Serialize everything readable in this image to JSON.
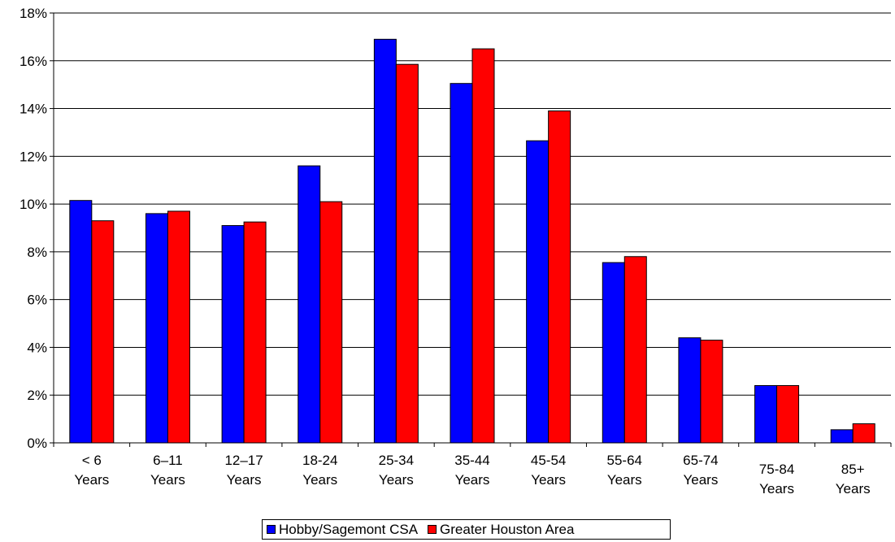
{
  "chart_data": {
    "type": "bar",
    "categories": [
      [
        "< 6",
        "Years"
      ],
      [
        "6–11",
        "Years"
      ],
      [
        "12–17",
        "Years"
      ],
      [
        "18-24",
        "Years"
      ],
      [
        "25-34",
        "Years"
      ],
      [
        "35-44",
        "Years"
      ],
      [
        "45-54",
        "Years"
      ],
      [
        "55-64",
        "Years"
      ],
      [
        "65-74",
        "Years"
      ],
      [
        "75-84",
        "Years"
      ],
      [
        "85+",
        "Years"
      ]
    ],
    "series": [
      {
        "name": "Hobby/Sagemont CSA",
        "color": "#0000ff",
        "values": [
          10.15,
          9.6,
          9.1,
          11.6,
          16.9,
          15.05,
          12.65,
          7.55,
          4.4,
          2.4,
          0.55
        ]
      },
      {
        "name": "Greater Houston Area",
        "color": "#ff0000",
        "values": [
          9.3,
          9.7,
          9.25,
          10.1,
          15.85,
          16.5,
          13.9,
          7.8,
          4.3,
          2.4,
          0.8
        ]
      }
    ],
    "ylim": [
      0,
      18
    ],
    "yticks": [
      "0%",
      "2%",
      "4%",
      "6%",
      "8%",
      "10%",
      "12%",
      "14%",
      "16%",
      "18%"
    ],
    "title": "",
    "xlabel": "",
    "ylabel": "",
    "grid": true,
    "legend_position": "bottom"
  }
}
